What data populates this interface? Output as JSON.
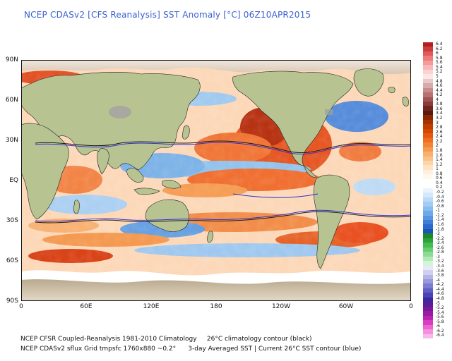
{
  "title": "NCEP CDASv2 [CFS Reanalysis] SST Anomaly [°C] 06Z10APR2015",
  "axes": {
    "lat_labels": [
      "90N",
      "60N",
      "30N",
      "EQ",
      "30S",
      "60S",
      "90S"
    ],
    "lon_labels": [
      "0",
      "60E",
      "120E",
      "180",
      "120W",
      "60W",
      "0"
    ]
  },
  "colorbar": {
    "labels": [
      "6.4",
      "6.2",
      "6",
      "5.8",
      "5.6",
      "5.4",
      "5.2",
      "5",
      "4.8",
      "4.6",
      "4.4",
      "4.2",
      "4",
      "3.8",
      "3.6",
      "3.4",
      "3.2",
      "3",
      "2.8",
      "2.6",
      "2.4",
      "2.2",
      "2",
      "1.8",
      "1.6",
      "1.4",
      "1.2",
      "1",
      "0.8",
      "0.6",
      "0.4",
      "0.2",
      "-0.2",
      "-0.4",
      "-0.6",
      "-0.8",
      "-1",
      "-1.2",
      "-1.4",
      "-1.6",
      "-1.8",
      "-2",
      "-2.2",
      "-2.4",
      "-2.6",
      "-2.8",
      "-3",
      "-3.2",
      "-3.4",
      "-3.6",
      "-3.8",
      "-4",
      "-4.2",
      "-4.4",
      "-4.6",
      "-4.8",
      "-5",
      "-5.2",
      "-5.4",
      "-5.6",
      "-5.8",
      "-6",
      "-6.2",
      "-6.4"
    ],
    "colors": [
      "#b41e1e",
      "#cd3c3c",
      "#e05a5a",
      "#ee7a7a",
      "#f59a9a",
      "#f9b8b8",
      "#fcd2d2",
      "#fde6e6",
      "#e8c8c8",
      "#d8aaaa",
      "#c88c8c",
      "#b87070",
      "#a05555",
      "#8a3c3c",
      "#70281e",
      "#5a1a10",
      "#8c2800",
      "#a63200",
      "#c03c00",
      "#d44800",
      "#e45a10",
      "#f06e20",
      "#f48434",
      "#f69a50",
      "#f8b06c",
      "#fac28a",
      "#fcd4a8",
      "#fde4c4",
      "#fef0dc",
      "#fff8ee",
      "#ffffff",
      "#ffffff",
      "#eaf4ff",
      "#d4e8fc",
      "#bcdaf8",
      "#a2ccf4",
      "#88bcf0",
      "#6eaaea",
      "#5696e2",
      "#3e80d8",
      "#2a6acc",
      "#1c54bc",
      "#1a8a2a",
      "#2aa43a",
      "#44bc50",
      "#66cc70",
      "#8adc92",
      "#b0eab4",
      "#d4f4d6",
      "#e8e8f8",
      "#cfcff0",
      "#b4b4e6",
      "#9898dc",
      "#7c7cd0",
      "#6060c4",
      "#4a44b4",
      "#3a2aa0",
      "#5a1e96",
      "#7a1a9a",
      "#9a1aa4",
      "#ba24b0",
      "#d83cc0",
      "#ea64d2",
      "#f490e0",
      "#f8b8ec"
    ]
  },
  "footer": {
    "line1": "NCEP CFSR Coupled-Reanalysis 1981-2010 Climatology     26°C climatology contour (black)",
    "line2": "NCEP CDASv2 sflux Grid tmpsfc 1760x880 ~0.2°      3-day Averaged SST | Current 26°C SST contour (blue)"
  }
}
